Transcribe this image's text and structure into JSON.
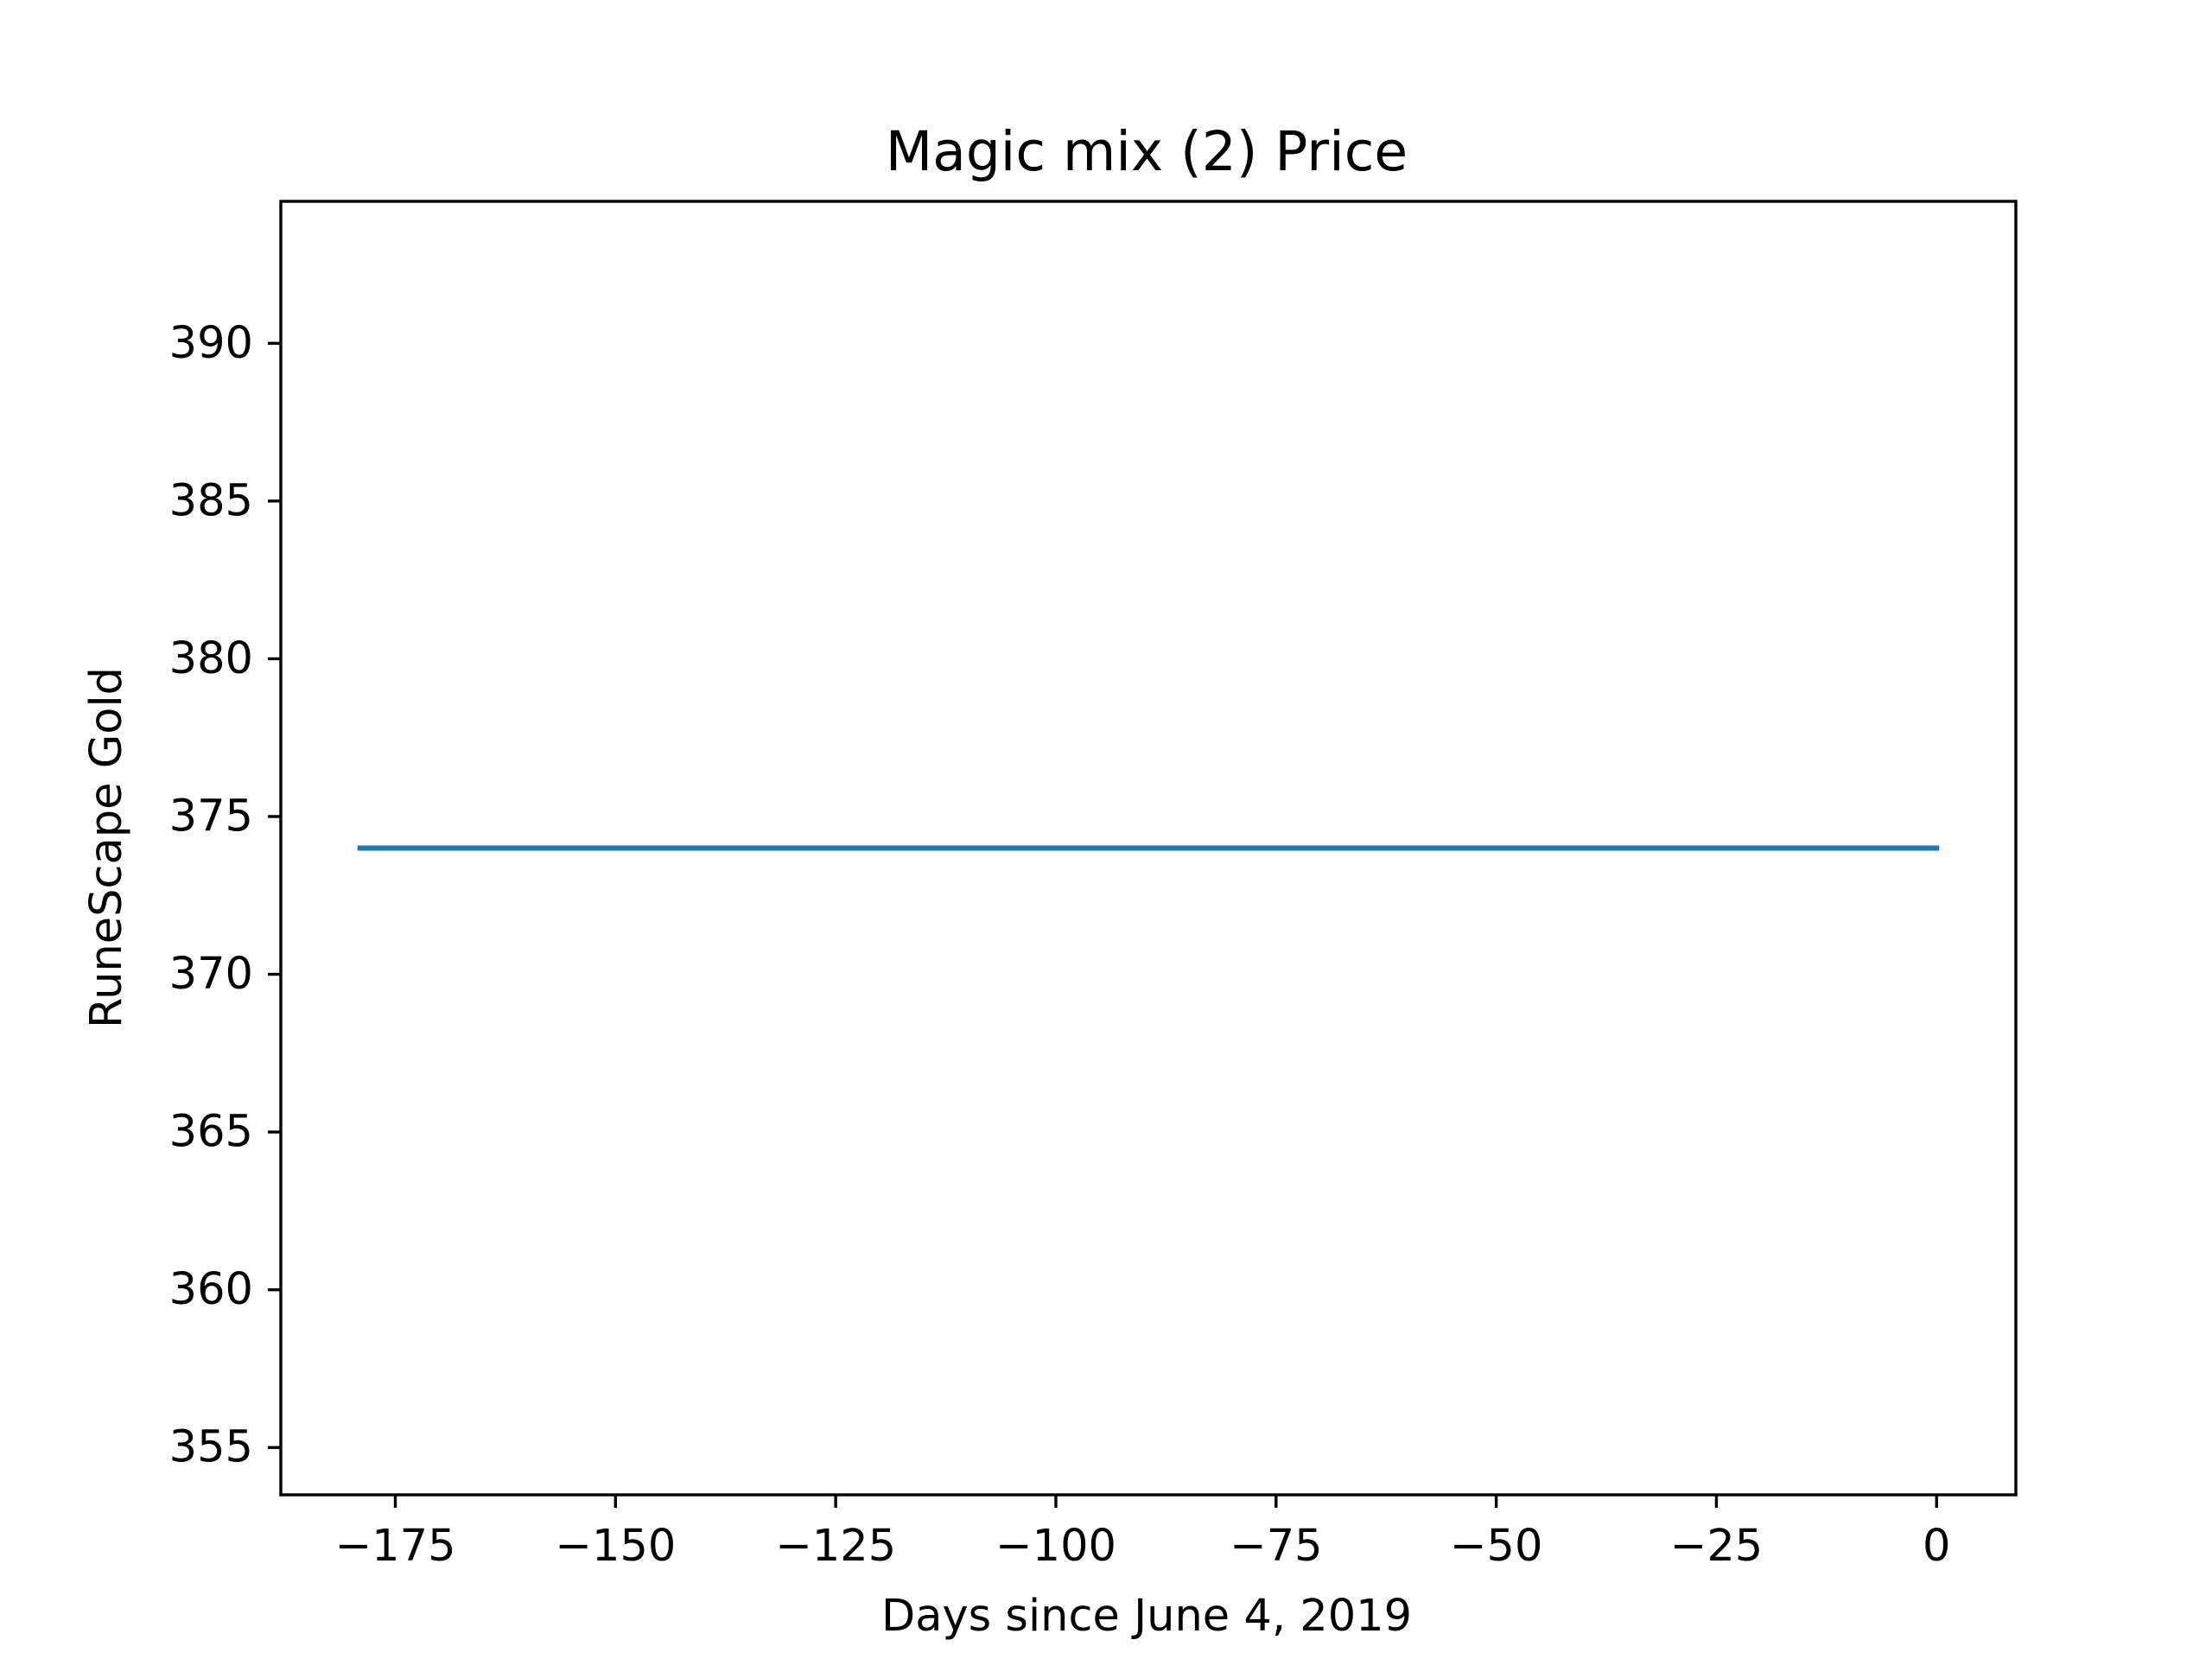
{
  "chart_data": {
    "type": "line",
    "title": "Magic mix (2) Price",
    "xlabel": "Days since June 4, 2019",
    "ylabel": "RuneScape Gold",
    "xlim": [
      -188,
      9
    ],
    "ylim": [
      353.5,
      394.5
    ],
    "x_ticks": [
      -175,
      -150,
      -125,
      -100,
      -75,
      -50,
      -25,
      0
    ],
    "x_tick_labels": [
      "−175",
      "−150",
      "−125",
      "−100",
      "−75",
      "−50",
      "−25",
      "0"
    ],
    "y_ticks": [
      355,
      360,
      365,
      370,
      375,
      380,
      385,
      390
    ],
    "y_tick_labels": [
      "355",
      "360",
      "365",
      "370",
      "375",
      "380",
      "385",
      "390"
    ],
    "grid": false,
    "series": [
      {
        "color": "#1f77b4",
        "x": [
          -179,
          0
        ],
        "y": [
          374,
          374
        ]
      }
    ]
  }
}
